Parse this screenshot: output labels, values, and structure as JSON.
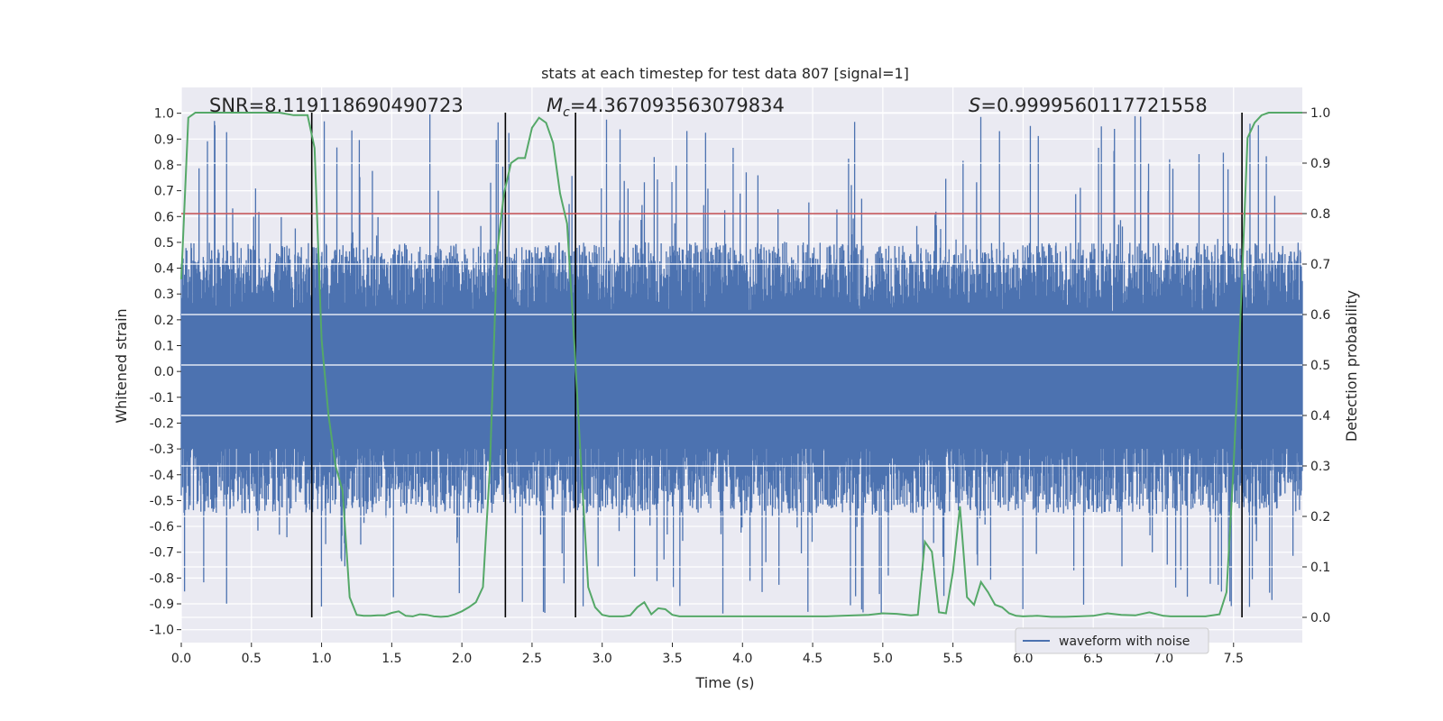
{
  "chart_data": {
    "type": "line",
    "title": "stats at each timestep for test data 807 [signal=1]",
    "xlabel": "Time (s)",
    "ylabel": "Whitened strain",
    "ylabel_right": "Detection probability",
    "xlim": [
      0.0,
      7.99
    ],
    "ylim": [
      -1.05,
      1.1
    ],
    "ylim_right": [
      -0.05,
      1.05
    ],
    "x_ticks": [
      0.0,
      0.5,
      1.0,
      1.5,
      2.0,
      2.5,
      3.0,
      3.5,
      4.0,
      4.5,
      5.0,
      5.5,
      6.0,
      6.5,
      7.0,
      7.5
    ],
    "x_tick_labels": [
      "0.0",
      "0.5",
      "1.0",
      "1.5",
      "2.0",
      "2.5",
      "3.0",
      "3.5",
      "4.0",
      "4.5",
      "5.0",
      "5.5",
      "6.0",
      "6.5",
      "7.0",
      "7.5"
    ],
    "y_ticks": [
      -1.0,
      -0.9,
      -0.8,
      -0.7,
      -0.6,
      -0.5,
      -0.4,
      -0.3,
      -0.2,
      -0.1,
      0.0,
      0.1,
      0.2,
      0.3,
      0.4,
      0.5,
      0.6,
      0.7,
      0.8,
      0.9,
      1.0
    ],
    "y_tick_labels": [
      "-1.0",
      "-0.9",
      "-0.8",
      "-0.7",
      "-0.6",
      "-0.5",
      "-0.4",
      "-0.3",
      "-0.2",
      "-0.1",
      "0.0",
      "0.1",
      "0.2",
      "0.3",
      "0.4",
      "0.5",
      "0.6",
      "0.7",
      "0.8",
      "0.9",
      "1.0"
    ],
    "y_right_ticks": [
      0.0,
      0.1,
      0.2,
      0.3,
      0.4,
      0.5,
      0.6,
      0.7,
      0.8,
      0.9,
      1.0
    ],
    "y_right_tick_labels": [
      "0.0",
      "0.1",
      "0.2",
      "0.3",
      "0.4",
      "0.5",
      "0.6",
      "0.7",
      "0.8",
      "0.9",
      "1.0"
    ],
    "annotations": {
      "snr": "SNR=8.119118690490723",
      "mc_symbol": "M",
      "mc_sub": "c",
      "mc_value": "=4.367093563079834",
      "s_symbol": "S",
      "s_value": "=0.9999560117721558"
    },
    "threshold": {
      "axis": "right",
      "value": 0.8,
      "color": "#c44e52"
    },
    "vertical_lines": [
      0.93,
      2.31,
      2.81,
      7.56
    ],
    "waveform": {
      "name": "waveform with noise",
      "color": "#4c72b0",
      "render": "dense-noise",
      "typical_range": [
        -0.55,
        0.5
      ],
      "extreme_range": [
        -0.95,
        1.0
      ]
    },
    "probability": {
      "name": "detection probability",
      "color": "#55a868",
      "axis": "right",
      "x": [
        0.0,
        0.05,
        0.1,
        0.2,
        0.3,
        0.4,
        0.5,
        0.6,
        0.7,
        0.8,
        0.85,
        0.9,
        0.95,
        1.0,
        1.05,
        1.1,
        1.15,
        1.2,
        1.25,
        1.3,
        1.35,
        1.4,
        1.45,
        1.5,
        1.55,
        1.6,
        1.65,
        1.7,
        1.75,
        1.8,
        1.85,
        1.9,
        1.95,
        2.0,
        2.05,
        2.1,
        2.15,
        2.2,
        2.25,
        2.3,
        2.35,
        2.4,
        2.45,
        2.5,
        2.55,
        2.6,
        2.65,
        2.7,
        2.75,
        2.8,
        2.85,
        2.9,
        2.95,
        3.0,
        3.05,
        3.1,
        3.15,
        3.2,
        3.25,
        3.3,
        3.35,
        3.4,
        3.45,
        3.5,
        3.55,
        3.6,
        3.65,
        3.7,
        3.75,
        3.8,
        3.9,
        4.0,
        4.2,
        4.4,
        4.6,
        4.8,
        4.9,
        5.0,
        5.1,
        5.2,
        5.25,
        5.3,
        5.35,
        5.4,
        5.45,
        5.5,
        5.55,
        5.6,
        5.65,
        5.7,
        5.75,
        5.8,
        5.85,
        5.9,
        5.95,
        6.0,
        6.1,
        6.2,
        6.3,
        6.4,
        6.5,
        6.6,
        6.7,
        6.8,
        6.9,
        7.0,
        7.05,
        7.1,
        7.2,
        7.3,
        7.4,
        7.45,
        7.5,
        7.55,
        7.6,
        7.65,
        7.7,
        7.75,
        7.8,
        7.9,
        7.99
      ],
      "y": [
        0.67,
        0.99,
        1.0,
        1.0,
        1.0,
        1.0,
        1.0,
        1.0,
        1.0,
        0.995,
        0.995,
        0.995,
        0.93,
        0.55,
        0.4,
        0.3,
        0.25,
        0.04,
        0.005,
        0.003,
        0.003,
        0.004,
        0.004,
        0.009,
        0.012,
        0.003,
        0.002,
        0.006,
        0.005,
        0.002,
        0.001,
        0.002,
        0.006,
        0.012,
        0.02,
        0.03,
        0.06,
        0.3,
        0.72,
        0.84,
        0.9,
        0.91,
        0.91,
        0.97,
        0.99,
        0.98,
        0.94,
        0.84,
        0.78,
        0.55,
        0.3,
        0.06,
        0.02,
        0.005,
        0.002,
        0.002,
        0.002,
        0.004,
        0.02,
        0.03,
        0.006,
        0.018,
        0.016,
        0.005,
        0.002,
        0.002,
        0.002,
        0.002,
        0.002,
        0.002,
        0.002,
        0.002,
        0.002,
        0.002,
        0.002,
        0.004,
        0.005,
        0.008,
        0.007,
        0.004,
        0.005,
        0.15,
        0.13,
        0.01,
        0.008,
        0.09,
        0.22,
        0.04,
        0.025,
        0.07,
        0.05,
        0.025,
        0.02,
        0.008,
        0.003,
        0.002,
        0.003,
        0.001,
        0.001,
        0.002,
        0.003,
        0.008,
        0.005,
        0.004,
        0.01,
        0.003,
        0.002,
        0.002,
        0.002,
        0.002,
        0.006,
        0.05,
        0.3,
        0.6,
        0.95,
        0.98,
        0.995,
        1.0,
        1.0,
        1.0,
        1.0
      ]
    }
  }
}
